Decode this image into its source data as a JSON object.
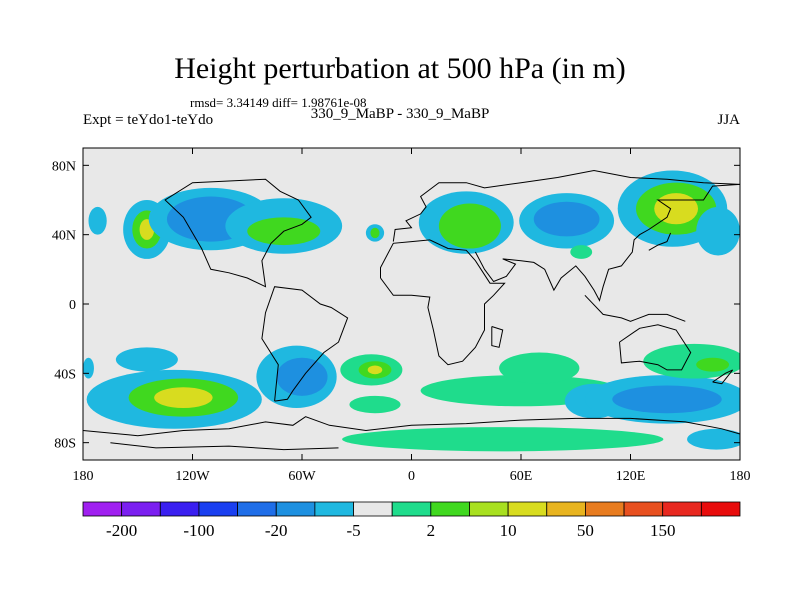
{
  "header": {
    "title": "Height perturbation at 500 hPa (in m)",
    "stats": "rmsd= 3.34149 diff= 1.98761e-08",
    "experiment": "Expt = teYdo1-teYdo",
    "case": "330_9_MaBP - 330_9_MaBP",
    "season": "JJA"
  },
  "colors": {
    "background_fill": "#e8e8e8",
    "frame": "#000000"
  },
  "chart_data": {
    "type": "heatmap",
    "title": "Height perturbation at 500 hPa (in m)",
    "projection": "cylindrical equidistant",
    "xlim": [
      -180,
      180
    ],
    "ylim": [
      -90,
      90
    ],
    "x_ticks": [
      {
        "value": -180,
        "label": "180"
      },
      {
        "value": -120,
        "label": "120W"
      },
      {
        "value": -60,
        "label": "60W"
      },
      {
        "value": 0,
        "label": "0"
      },
      {
        "value": 60,
        "label": "60E"
      },
      {
        "value": 120,
        "label": "120E"
      },
      {
        "value": 180,
        "label": "180"
      }
    ],
    "y_ticks": [
      {
        "value": 80,
        "label": "80N"
      },
      {
        "value": 40,
        "label": "40N"
      },
      {
        "value": 0,
        "label": "0"
      },
      {
        "value": -40,
        "label": "40S"
      },
      {
        "value": -80,
        "label": "80S"
      }
    ],
    "colorbar": {
      "colors": [
        "#a020f0",
        "#7b1ff0",
        "#3a1ff0",
        "#1a3ff0",
        "#1f6ee8",
        "#1e90e0",
        "#1fb8e0",
        "#e8e8e8",
        "#1fdc8c",
        "#40d81f",
        "#a8e01f",
        "#d8dc1f",
        "#e8b41f",
        "#e87c1f",
        "#e8501f",
        "#e8281f",
        "#e80c0c"
      ],
      "labels": [
        {
          "after_bin": 1,
          "text": "-200"
        },
        {
          "after_bin": 3,
          "text": "-100"
        },
        {
          "after_bin": 5,
          "text": "-20"
        },
        {
          "after_bin": 7,
          "text": "-5"
        },
        {
          "after_bin": 9,
          "text": "2"
        },
        {
          "after_bin": 11,
          "text": "10"
        },
        {
          "after_bin": 13,
          "text": "50"
        },
        {
          "after_bin": 15,
          "text": "150"
        }
      ]
    },
    "anomaly_cells": [
      {
        "lon": -172,
        "lat": 48,
        "rx": 5,
        "ry": 8,
        "level": 6
      },
      {
        "lon": -145,
        "lat": 43,
        "rx": 13,
        "ry": 17,
        "level": 6
      },
      {
        "lon": -145,
        "lat": 43,
        "rx": 8,
        "ry": 11,
        "level": 9
      },
      {
        "lon": -145,
        "lat": 43,
        "rx": 4,
        "ry": 6,
        "level": 11
      },
      {
        "lon": -110,
        "lat": 49,
        "rx": 34,
        "ry": 18,
        "level": 6
      },
      {
        "lon": -110,
        "lat": 49,
        "rx": 24,
        "ry": 13,
        "level": 5
      },
      {
        "lon": -70,
        "lat": 45,
        "rx": 32,
        "ry": 16,
        "level": 6
      },
      {
        "lon": -70,
        "lat": 42,
        "rx": 20,
        "ry": 8,
        "level": 9
      },
      {
        "lon": -20,
        "lat": 41,
        "rx": 5,
        "ry": 5,
        "level": 6
      },
      {
        "lon": -20,
        "lat": 41,
        "rx": 2.5,
        "ry": 3,
        "level": 9
      },
      {
        "lon": 30,
        "lat": 47,
        "rx": 26,
        "ry": 18,
        "level": 6
      },
      {
        "lon": 32,
        "lat": 45,
        "rx": 17,
        "ry": 13,
        "level": 9
      },
      {
        "lon": 85,
        "lat": 48,
        "rx": 26,
        "ry": 16,
        "level": 6
      },
      {
        "lon": 85,
        "lat": 49,
        "rx": 18,
        "ry": 10,
        "level": 5
      },
      {
        "lon": 93,
        "lat": 30,
        "rx": 6,
        "ry": 4,
        "level": 8
      },
      {
        "lon": 143,
        "lat": 55,
        "rx": 30,
        "ry": 22,
        "level": 6
      },
      {
        "lon": 145,
        "lat": 55,
        "rx": 22,
        "ry": 15,
        "level": 9
      },
      {
        "lon": 145,
        "lat": 55,
        "rx": 12,
        "ry": 9,
        "level": 11
      },
      {
        "lon": 168,
        "lat": 42,
        "rx": 12,
        "ry": 14,
        "level": 6
      },
      {
        "lon": -177,
        "lat": -37,
        "rx": 3,
        "ry": 6,
        "level": 6
      },
      {
        "lon": -145,
        "lat": -32,
        "rx": 17,
        "ry": 7,
        "level": 6
      },
      {
        "lon": -130,
        "lat": -55,
        "rx": 48,
        "ry": 17,
        "level": 6
      },
      {
        "lon": -125,
        "lat": -54,
        "rx": 30,
        "ry": 11,
        "level": 9
      },
      {
        "lon": -125,
        "lat": -54,
        "rx": 16,
        "ry": 6,
        "level": 11
      },
      {
        "lon": -63,
        "lat": -42,
        "rx": 22,
        "ry": 18,
        "level": 6
      },
      {
        "lon": -60,
        "lat": -42,
        "rx": 14,
        "ry": 11,
        "level": 5
      },
      {
        "lon": -22,
        "lat": -38,
        "rx": 17,
        "ry": 9,
        "level": 8
      },
      {
        "lon": -20,
        "lat": -38,
        "rx": 9,
        "ry": 5,
        "level": 9
      },
      {
        "lon": -20,
        "lat": -38,
        "rx": 4,
        "ry": 2.5,
        "level": 11
      },
      {
        "lon": -20,
        "lat": -58,
        "rx": 14,
        "ry": 5,
        "level": 8
      },
      {
        "lon": 60,
        "lat": -50,
        "rx": 55,
        "ry": 9,
        "level": 8
      },
      {
        "lon": 70,
        "lat": -37,
        "rx": 22,
        "ry": 9,
        "level": 8
      },
      {
        "lon": 50,
        "lat": -78,
        "rx": 88,
        "ry": 7,
        "level": 8
      },
      {
        "lon": 100,
        "lat": -56,
        "rx": 16,
        "ry": 10,
        "level": 6
      },
      {
        "lon": 140,
        "lat": -55,
        "rx": 45,
        "ry": 14,
        "level": 6
      },
      {
        "lon": 140,
        "lat": -55,
        "rx": 30,
        "ry": 8,
        "level": 5
      },
      {
        "lon": 155,
        "lat": -33,
        "rx": 28,
        "ry": 10,
        "level": 8
      },
      {
        "lon": 165,
        "lat": -35,
        "rx": 9,
        "ry": 4,
        "level": 9
      },
      {
        "lon": 167,
        "lat": -78,
        "rx": 16,
        "ry": 6,
        "level": 6
      }
    ],
    "coastlines": [
      [
        [
          -180,
          -73
        ],
        [
          -150,
          -76
        ],
        [
          -125,
          -73
        ],
        [
          -100,
          -72
        ],
        [
          -80,
          -68
        ],
        [
          -65,
          -70
        ],
        [
          -58,
          -65
        ],
        [
          -45,
          -70
        ],
        [
          -25,
          -73
        ],
        [
          0,
          -70
        ],
        [
          30,
          -69
        ],
        [
          60,
          -67
        ],
        [
          90,
          -66
        ],
        [
          120,
          -66
        ],
        [
          150,
          -68
        ],
        [
          170,
          -72
        ],
        [
          180,
          -75
        ]
      ],
      [
        [
          -165,
          -80
        ],
        [
          -140,
          -83
        ],
        [
          -100,
          -82
        ],
        [
          -70,
          -84
        ],
        [
          -40,
          -83
        ]
      ],
      [
        [
          -75,
          -56
        ],
        [
          -68,
          -55
        ],
        [
          -65,
          -50
        ],
        [
          -58,
          -40
        ],
        [
          -48,
          -28
        ],
        [
          -40,
          -22
        ],
        [
          -35,
          -8
        ],
        [
          -44,
          -2
        ],
        [
          -50,
          0
        ],
        [
          -60,
          8
        ],
        [
          -75,
          10
        ],
        [
          -80,
          -5
        ],
        [
          -82,
          -20
        ],
        [
          -73,
          -35
        ],
        [
          -75,
          -56
        ]
      ],
      [
        [
          -115,
          32
        ],
        [
          -110,
          20
        ],
        [
          -100,
          18
        ],
        [
          -90,
          15
        ],
        [
          -80,
          10
        ],
        [
          -82,
          25
        ],
        [
          -77,
          35
        ],
        [
          -70,
          42
        ],
        [
          -60,
          46
        ],
        [
          -55,
          50
        ],
        [
          -62,
          60
        ],
        [
          -72,
          65
        ],
        [
          -80,
          72
        ],
        [
          -120,
          70
        ],
        [
          -135,
          60
        ],
        [
          -125,
          50
        ],
        [
          -115,
          32
        ]
      ],
      [
        [
          -17,
          15
        ],
        [
          -10,
          5
        ],
        [
          0,
          5
        ],
        [
          10,
          4
        ],
        [
          9,
          -2
        ],
        [
          12,
          -15
        ],
        [
          15,
          -30
        ],
        [
          20,
          -35
        ],
        [
          28,
          -33
        ],
        [
          35,
          -25
        ],
        [
          40,
          -15
        ],
        [
          40,
          0
        ],
        [
          45,
          5
        ],
        [
          51,
          12
        ],
        [
          43,
          12
        ],
        [
          35,
          25
        ],
        [
          30,
          31
        ],
        [
          20,
          32
        ],
        [
          10,
          37
        ],
        [
          0,
          36
        ],
        [
          -10,
          35
        ],
        [
          -17,
          21
        ],
        [
          -17,
          15
        ]
      ],
      [
        [
          -10,
          36
        ],
        [
          -9,
          43
        ],
        [
          0,
          44
        ],
        [
          -3,
          48
        ],
        [
          5,
          52
        ],
        [
          8,
          56
        ],
        [
          5,
          62
        ],
        [
          15,
          70
        ],
        [
          30,
          70
        ],
        [
          40,
          67
        ],
        [
          60,
          70
        ],
        [
          80,
          73
        ],
        [
          100,
          77
        ],
        [
          120,
          73
        ],
        [
          140,
          72
        ],
        [
          160,
          70
        ],
        [
          180,
          69
        ]
      ],
      [
        [
          35,
          30
        ],
        [
          40,
          20
        ],
        [
          45,
          13
        ],
        [
          52,
          16
        ],
        [
          57,
          23
        ],
        [
          50,
          26
        ],
        [
          60,
          25
        ],
        [
          67,
          24
        ],
        [
          73,
          20
        ],
        [
          78,
          8
        ],
        [
          82,
          15
        ],
        [
          90,
          22
        ],
        [
          95,
          16
        ],
        [
          100,
          8
        ],
        [
          103,
          2
        ],
        [
          105,
          10
        ],
        [
          108,
          20
        ],
        [
          115,
          22
        ],
        [
          121,
          30
        ],
        [
          122,
          37
        ],
        [
          125,
          40
        ],
        [
          130,
          43
        ],
        [
          140,
          50
        ],
        [
          142,
          55
        ],
        [
          135,
          60
        ],
        [
          145,
          60
        ],
        [
          160,
          60
        ],
        [
          165,
          68
        ],
        [
          180,
          69
        ]
      ],
      [
        [
          44,
          -13
        ],
        [
          50,
          -15
        ],
        [
          48,
          -25
        ],
        [
          44,
          -24
        ],
        [
          44,
          -13
        ]
      ],
      [
        [
          114,
          -22
        ],
        [
          115,
          -34
        ],
        [
          125,
          -33
        ],
        [
          135,
          -35
        ],
        [
          140,
          -38
        ],
        [
          148,
          -38
        ],
        [
          153,
          -28
        ],
        [
          145,
          -15
        ],
        [
          135,
          -12
        ],
        [
          125,
          -14
        ],
        [
          114,
          -22
        ]
      ],
      [
        [
          95,
          5
        ],
        [
          105,
          -6
        ],
        [
          115,
          -8
        ],
        [
          120,
          -10
        ],
        [
          130,
          -6
        ],
        [
          140,
          -6
        ],
        [
          150,
          -10
        ]
      ],
      [
        [
          130,
          31
        ],
        [
          135,
          34
        ],
        [
          140,
          36
        ],
        [
          142,
          41
        ]
      ],
      [
        [
          165,
          -45
        ],
        [
          172,
          -40
        ],
        [
          176,
          -38
        ],
        [
          170,
          -46
        ],
        [
          165,
          -45
        ]
      ]
    ]
  }
}
